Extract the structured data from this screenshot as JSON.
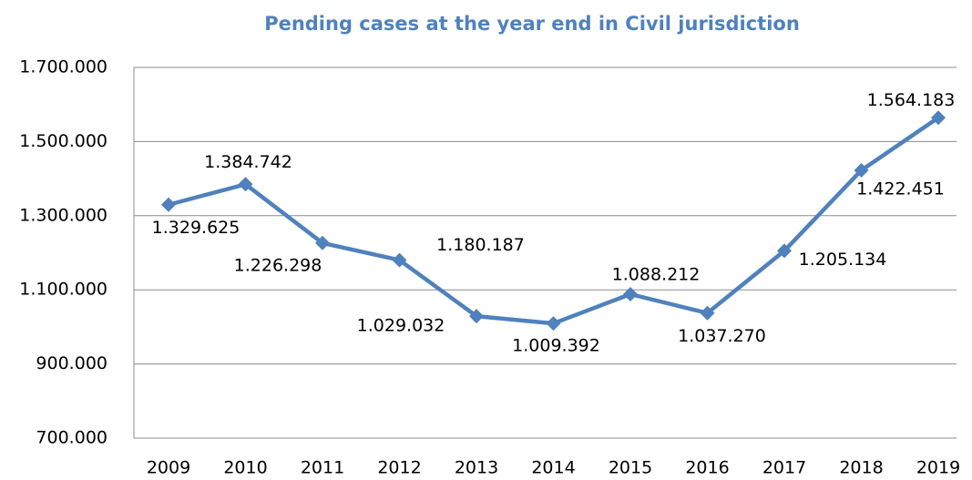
{
  "chart_data": {
    "type": "line",
    "title": "Pending cases at the year end in Civil jurisdiction",
    "categories": [
      "2009",
      "2010",
      "2011",
      "2012",
      "2013",
      "2014",
      "2015",
      "2016",
      "2017",
      "2018",
      "2019"
    ],
    "series": [
      {
        "name": "Pending cases",
        "color": "#4f81bd",
        "values": [
          1329625,
          1384742,
          1226298,
          1180187,
          1029032,
          1009392,
          1088212,
          1037270,
          1205134,
          1422451,
          1564183
        ],
        "value_labels": [
          "1.329.625",
          "1.384.742",
          "1.226.298",
          "1.180.187",
          "1.029.032",
          "1.009.392",
          "1.088.212",
          "1.037.270",
          "1.205.134",
          "1.422.451",
          "1.564.183"
        ]
      }
    ],
    "ylim": [
      700000,
      1700000
    ],
    "yticks": [
      {
        "value": 700000,
        "label": "700.000"
      },
      {
        "value": 900000,
        "label": "900.000"
      },
      {
        "value": 1100000,
        "label": "1.100.000"
      },
      {
        "value": 1300000,
        "label": "1.300.000"
      },
      {
        "value": 1500000,
        "label": "1.500.000"
      },
      {
        "value": 1700000,
        "label": "1.700.000"
      }
    ],
    "grid": true
  }
}
